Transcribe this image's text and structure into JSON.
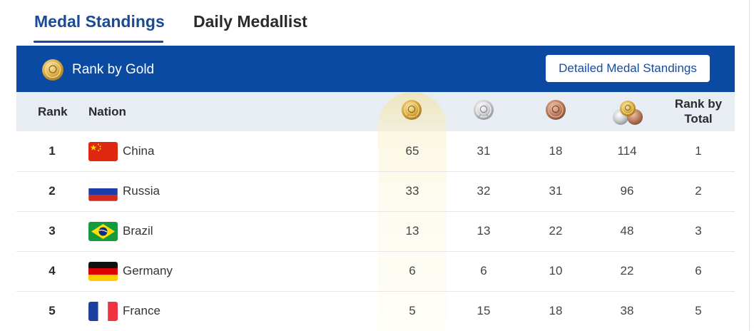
{
  "tabs": [
    {
      "label": "Medal Standings",
      "active": true
    },
    {
      "label": "Daily Medallist",
      "active": false
    }
  ],
  "header": {
    "title": "Rank by Gold",
    "detail_button": "Detailed Medal Standings",
    "icon": "gold-medal-icon"
  },
  "columns": {
    "rank": "Rank",
    "nation": "Nation",
    "gold_icon": "gold-medal-icon",
    "silver_icon": "silver-medal-icon",
    "bronze_icon": "bronze-medal-icon",
    "total_icon": "all-medals-icon",
    "rank_by_total_line1": "Rank by",
    "rank_by_total_line2": "Total"
  },
  "colors": {
    "primary_blue": "#0a4aa3",
    "tab_active": "#1a4b97",
    "header_row_bg": "#e8ecf3",
    "gold_highlight": "#f6ecc4"
  },
  "rows": [
    {
      "rank": "1",
      "nation": "China",
      "flag": "china-flag",
      "gold": "65",
      "silver": "31",
      "bronze": "18",
      "total": "114",
      "rank_total": "1"
    },
    {
      "rank": "2",
      "nation": "Russia",
      "flag": "russia-flag",
      "gold": "33",
      "silver": "32",
      "bronze": "31",
      "total": "96",
      "rank_total": "2"
    },
    {
      "rank": "3",
      "nation": "Brazil",
      "flag": "brazil-flag",
      "gold": "13",
      "silver": "13",
      "bronze": "22",
      "total": "48",
      "rank_total": "3"
    },
    {
      "rank": "4",
      "nation": "Germany",
      "flag": "germany-flag",
      "gold": "6",
      "silver": "6",
      "bronze": "10",
      "total": "22",
      "rank_total": "6"
    },
    {
      "rank": "5",
      "nation": "France",
      "flag": "france-flag",
      "gold": "5",
      "silver": "15",
      "bronze": "18",
      "total": "38",
      "rank_total": "5"
    }
  ]
}
